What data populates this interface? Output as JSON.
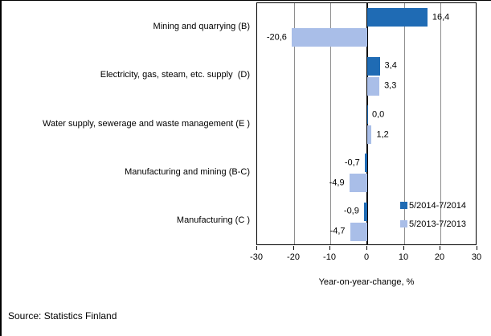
{
  "chart_data": {
    "type": "bar",
    "orientation": "horizontal",
    "xlabel": "Year-on-year-change, %",
    "xlim": [
      -30,
      30
    ],
    "xticks": [
      -30,
      -20,
      -10,
      0,
      10,
      20,
      30
    ],
    "grid": true,
    "legend_position": "inside-right-bottom",
    "value_label_format": "decimal-comma",
    "categories": [
      "Mining and quarrying (B)",
      "Electricity, gas, steam, etc. supply  (D)",
      "Water supply, sewerage and waste management (E )",
      "Manufacturing and mining (B-C)",
      "Manufacturing (C )"
    ],
    "series": [
      {
        "name": "5/2014-7/2014",
        "color": "#1f6bb4",
        "values": [
          16.4,
          3.4,
          0.0,
          -0.7,
          -0.9
        ]
      },
      {
        "name": "5/2013-7/2013",
        "color": "#a9bee8",
        "values": [
          -20.6,
          3.3,
          1.2,
          -4.9,
          -4.7
        ]
      }
    ]
  },
  "colors": {
    "series_dark": "#1f6bb4",
    "series_light": "#a9bee8",
    "gridline": "#8e8e8e",
    "axis": "#000000"
  },
  "footer": {
    "source_label": "Source: Statistics Finland"
  }
}
